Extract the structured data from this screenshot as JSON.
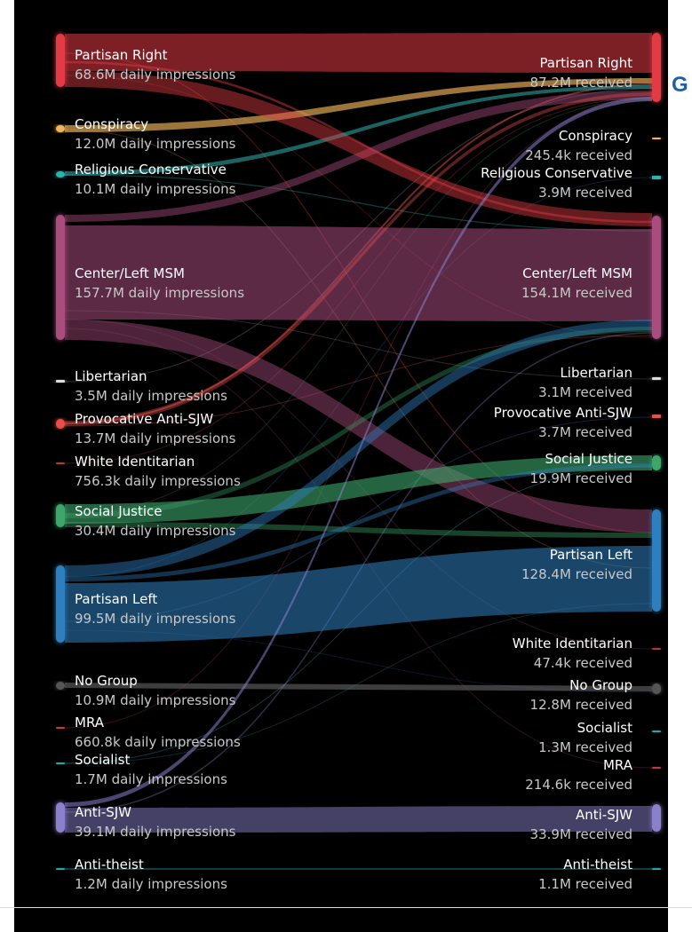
{
  "diagram": {
    "type": "sankey",
    "colors": {
      "Partisan Right": "#e23b45",
      "Conspiracy": "#f0b45a",
      "Religious Conservative": "#2fb4b0",
      "Center/Left MSM": "#a84d7d",
      "Libertarian": "#dddddd",
      "Provocative Anti-SJW": "#e8504a",
      "White Identitarian": "#b03a2e",
      "Social Justice": "#3da66a",
      "Partisan Left": "#2f7fc0",
      "No Group": "#555555",
      "MRA": "#c0394b",
      "Socialist": "#2aa3a8",
      "Anti-SJW": "#8a80cc",
      "Anti-theist": "#2aa3a8"
    },
    "left_nodes": [
      {
        "name": "Partisan Right",
        "value": "68.6M daily impressions"
      },
      {
        "name": "Conspiracy",
        "value": "12.0M daily impressions"
      },
      {
        "name": "Religious Conservative",
        "value": "10.1M daily impressions"
      },
      {
        "name": "Center/Left MSM",
        "value": "157.7M daily impressions"
      },
      {
        "name": "Libertarian",
        "value": "3.5M daily impressions"
      },
      {
        "name": "Provocative Anti-SJW",
        "value": "13.7M daily impressions"
      },
      {
        "name": "White Identitarian",
        "value": "756.3k daily impressions"
      },
      {
        "name": "Social Justice",
        "value": "30.4M daily impressions"
      },
      {
        "name": "Partisan Left",
        "value": "99.5M daily impressions"
      },
      {
        "name": "No Group",
        "value": "10.9M daily impressions"
      },
      {
        "name": "MRA",
        "value": "660.8k daily impressions"
      },
      {
        "name": "Socialist",
        "value": "1.7M daily impressions"
      },
      {
        "name": "Anti-SJW",
        "value": "39.1M daily impressions"
      },
      {
        "name": "Anti-theist",
        "value": "1.2M daily impressions"
      }
    ],
    "right_nodes": [
      {
        "name": "Partisan Right",
        "value": "87.2M received"
      },
      {
        "name": "Conspiracy",
        "value": "245.4k received"
      },
      {
        "name": "Religious Conservative",
        "value": "3.9M received"
      },
      {
        "name": "Center/Left MSM",
        "value": "154.1M received"
      },
      {
        "name": "Libertarian",
        "value": "3.1M received"
      },
      {
        "name": "Provocative Anti-SJW",
        "value": "3.7M received"
      },
      {
        "name": "Social Justice",
        "value": "19.9M received"
      },
      {
        "name": "Partisan Left",
        "value": "128.4M received"
      },
      {
        "name": "White Identitarian",
        "value": "47.4k received"
      },
      {
        "name": "No Group",
        "value": "12.8M received"
      },
      {
        "name": "Socialist",
        "value": "1.3M received"
      },
      {
        "name": "MRA",
        "value": "214.6k received"
      },
      {
        "name": "Anti-SJW",
        "value": "33.9M received"
      },
      {
        "name": "Anti-theist",
        "value": "1.1M received"
      }
    ],
    "cutoff_text": "G"
  }
}
